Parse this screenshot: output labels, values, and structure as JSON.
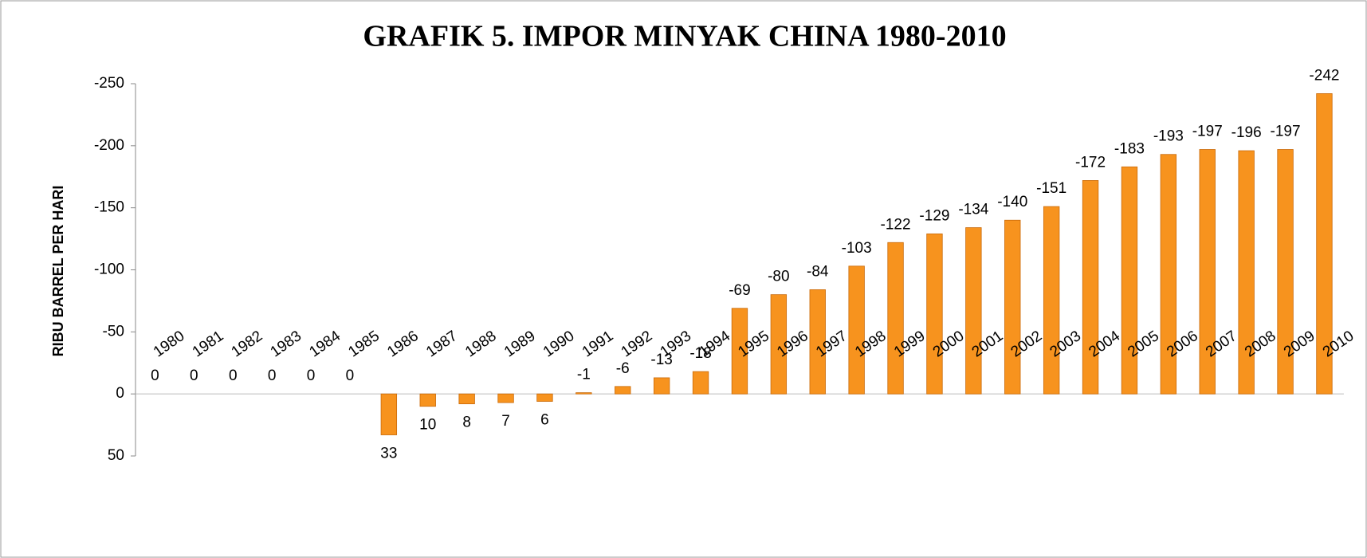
{
  "chart_data": {
    "type": "bar",
    "title": "GRAFIK 5. IMPOR MINYAK CHINA 1980-2010",
    "y_label": "RIBU BARREL PER HARI",
    "categories": [
      "1980",
      "1981",
      "1982",
      "1983",
      "1984",
      "1985",
      "1986",
      "1987",
      "1988",
      "1989",
      "1990",
      "1991",
      "1992",
      "1993",
      "1994",
      "1995",
      "1996",
      "1997",
      "1998",
      "1999",
      "2000",
      "2001",
      "2002",
      "2003",
      "2004",
      "2005",
      "2006",
      "2007",
      "2008",
      "2009",
      "2010"
    ],
    "values": [
      0,
      0,
      0,
      0,
      0,
      0,
      33,
      10,
      8,
      7,
      6,
      -1,
      -6,
      -13,
      -18,
      -69,
      -80,
      -84,
      -103,
      -122,
      -129,
      -134,
      -140,
      -151,
      -172,
      -183,
      -193,
      -197,
      -196,
      -197,
      -242
    ],
    "color": "#f7931e",
    "ylim": [
      50,
      -250
    ],
    "yticks": [
      -250,
      -200,
      -150,
      -100,
      -50,
      0,
      50
    ]
  }
}
